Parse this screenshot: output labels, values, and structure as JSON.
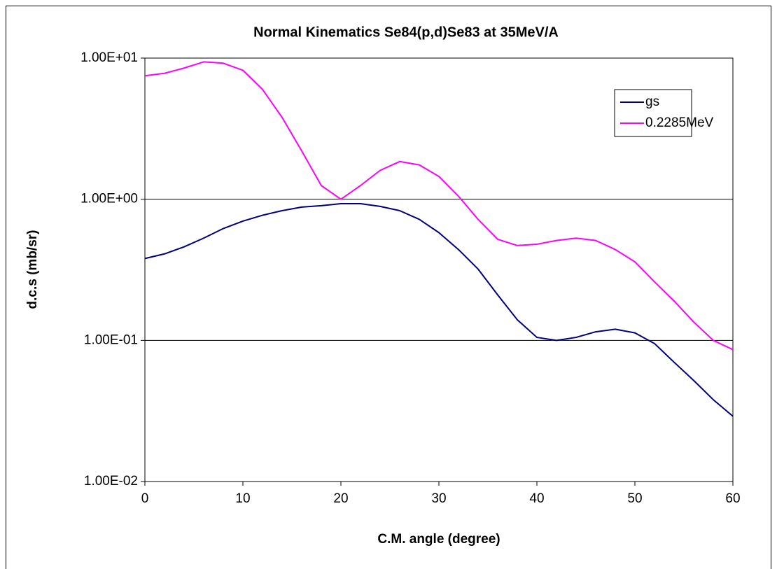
{
  "chart_data": {
    "type": "line",
    "title": "Normal Kinematics Se84(p,d)Se83 at 35MeV/A",
    "x_label": "C.M. angle (degree)",
    "y_label": "d.c.s (mb/sr)",
    "x": [
      0,
      2,
      4,
      6,
      8,
      10,
      12,
      14,
      16,
      18,
      20,
      22,
      24,
      26,
      28,
      30,
      32,
      34,
      36,
      38,
      40,
      42,
      44,
      46,
      48,
      50,
      52,
      54,
      56,
      58,
      60
    ],
    "series": [
      {
        "name": "gs",
        "color": "#000080",
        "values": [
          0.38,
          0.41,
          0.46,
          0.53,
          0.62,
          0.7,
          0.77,
          0.83,
          0.88,
          0.9,
          0.93,
          0.93,
          0.89,
          0.83,
          0.72,
          0.58,
          0.44,
          0.32,
          0.21,
          0.14,
          0.105,
          0.1,
          0.105,
          0.115,
          0.12,
          0.113,
          0.095,
          0.07,
          0.052,
          0.038,
          0.029
        ]
      },
      {
        "name": "0.2285MeV",
        "color": "#ff00ff",
        "values": [
          7.5,
          7.8,
          8.5,
          9.4,
          9.2,
          8.2,
          6.0,
          3.8,
          2.2,
          1.25,
          1.0,
          1.25,
          1.6,
          1.85,
          1.75,
          1.45,
          1.05,
          0.72,
          0.52,
          0.47,
          0.48,
          0.51,
          0.53,
          0.51,
          0.44,
          0.36,
          0.26,
          0.19,
          0.135,
          0.1,
          0.086
        ]
      }
    ],
    "xlim": [
      0,
      60
    ],
    "xticks": [
      0,
      10,
      20,
      30,
      40,
      50,
      60
    ],
    "ylim": [
      0.01,
      10
    ],
    "log_y": true,
    "yticks": [
      {
        "value": 0.01,
        "label": "1.00E-02"
      },
      {
        "value": 0.1,
        "label": "1.00E-01"
      },
      {
        "value": 1,
        "label": "1.00E+00"
      },
      {
        "value": 10,
        "label": "1.00E+01"
      }
    ],
    "grid": true,
    "legend": "upper right"
  }
}
